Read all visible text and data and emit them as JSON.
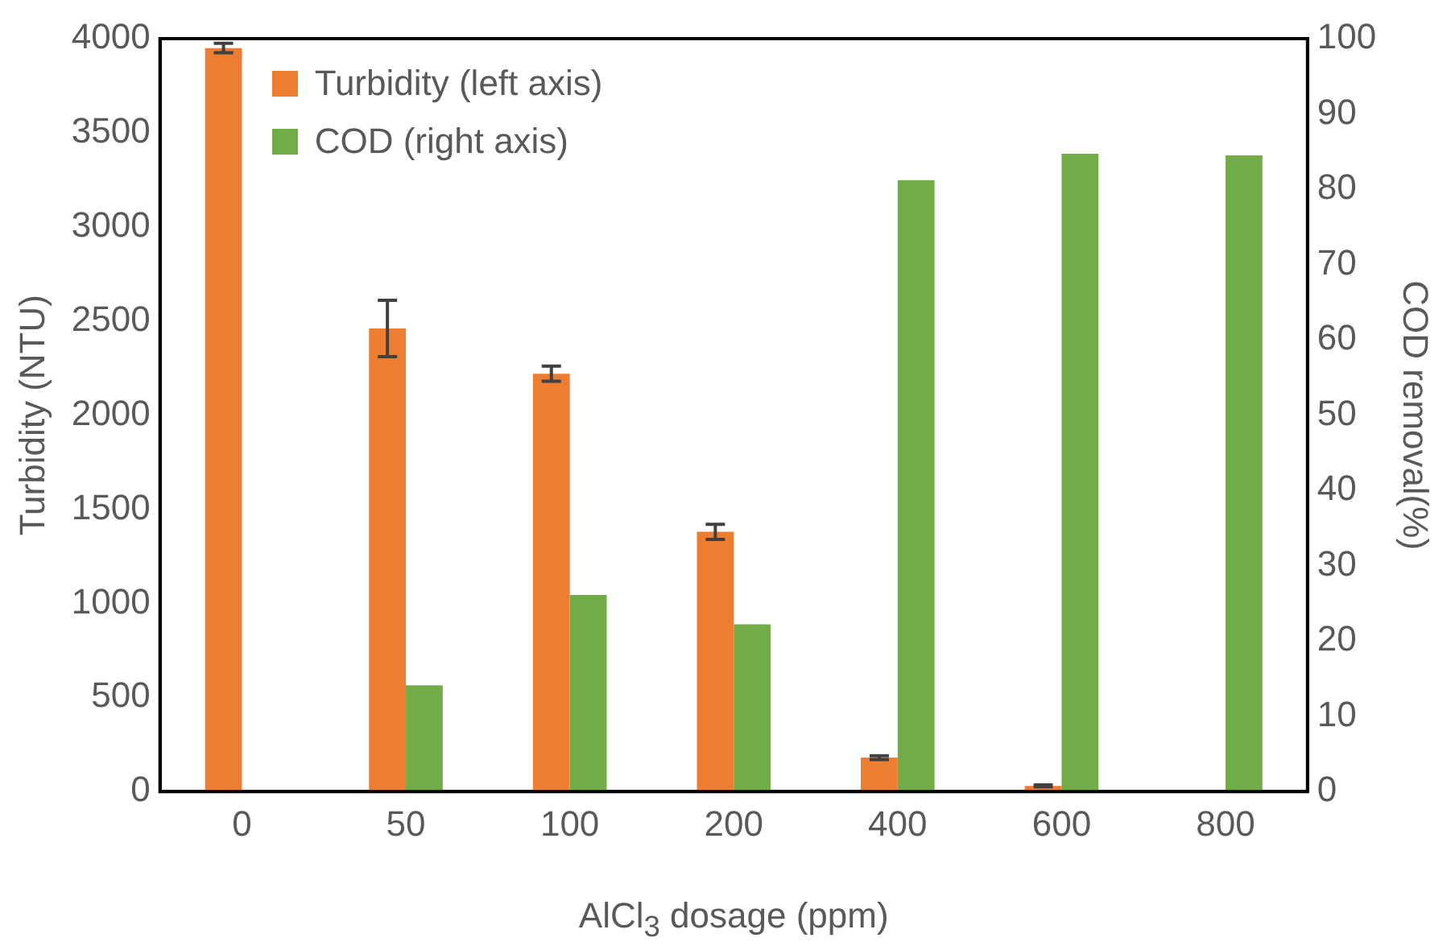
{
  "chart_data": {
    "type": "bar",
    "categories": [
      "0",
      "50",
      "100",
      "200",
      "400",
      "600",
      "800"
    ],
    "xlabel": "AlCl$_{3}$ dosage (ppm)",
    "ylabel": "Turbidity (NTU)",
    "y2label": "COD removal(%)",
    "series": [
      {
        "name": "Turbidity (left axis)",
        "color": "#ed7d31",
        "values": [
          3950,
          2460,
          2220,
          1380,
          180,
          30,
          0
        ],
        "errors": [
          25,
          150,
          40,
          40,
          10,
          5,
          null
        ]
      },
      {
        "name": "COD (right axis)",
        "color": "#70ad47",
        "axis": "y2",
        "values": [
          null,
          14.1,
          26.1,
          22.2,
          81.2,
          84.7,
          84.5
        ]
      }
    ],
    "ylim": [
      0,
      4000
    ],
    "yticks": [
      0,
      500,
      1000,
      1500,
      2000,
      2500,
      3000,
      3500,
      4000
    ],
    "y2lim": [
      0,
      100
    ],
    "y2ticks": [
      0,
      10,
      20,
      30,
      40,
      50,
      60,
      70,
      80,
      90,
      100
    ],
    "grid": false,
    "legend": "top left"
  }
}
